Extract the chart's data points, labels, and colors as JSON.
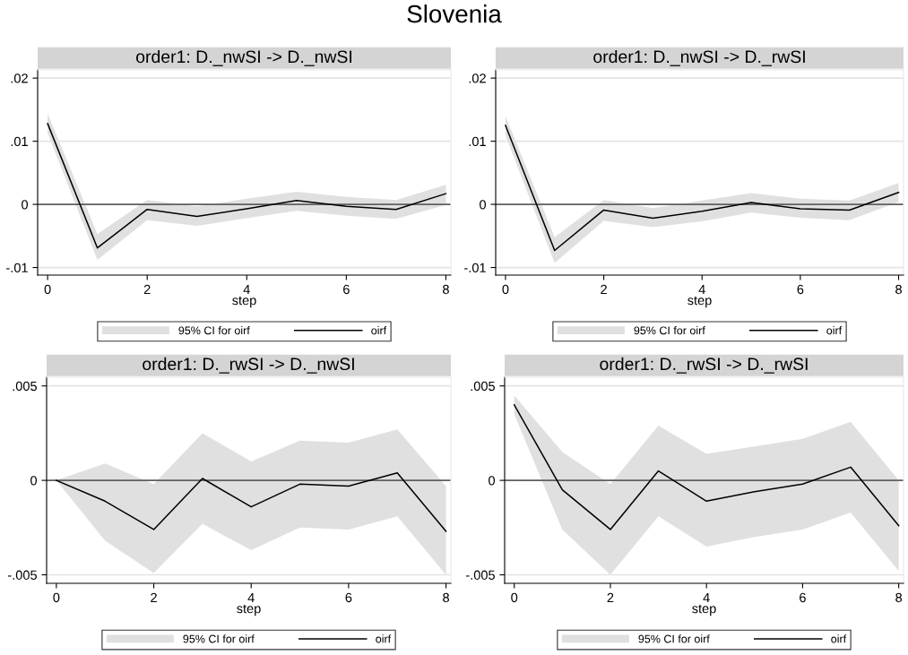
{
  "chart_data": [
    {
      "type": "line",
      "title": "order1: D._nwSI -> D._nwSI",
      "xlabel": "step",
      "annotations": [
        "Slovenia",
        "95% CI for oirf"
      ],
      "x": [
        0,
        1,
        2,
        3,
        4,
        5,
        6,
        7,
        8
      ],
      "series": [
        {
          "name": "oirf",
          "color": "#000000",
          "values": [
            0.0128,
            -0.0069,
            -0.0008,
            -0.0019,
            -0.0007,
            0.0006,
            -0.0003,
            -0.0008,
            0.0017
          ],
          "lower": [
            0.0113,
            -0.0088,
            -0.0025,
            -0.0034,
            -0.0022,
            -0.001,
            -0.0018,
            -0.0023,
            -0.0001
          ],
          "upper": [
            0.0144,
            -0.0047,
            0.0007,
            -0.0003,
            0.0009,
            0.002,
            0.0012,
            0.0007,
            0.0031
          ]
        }
      ],
      "xlim": [
        -0.2,
        8.1
      ],
      "xticks": [
        0,
        2,
        4,
        6,
        8
      ],
      "ylim": [
        -0.0112,
        0.0213
      ],
      "yticks": [
        {
          "value": -0.01,
          "label": "-.01"
        },
        0,
        {
          "value": 0.01,
          "label": ".01"
        },
        {
          "value": 0.02,
          "label": ".02"
        }
      ],
      "ref_lines": [
        {
          "axis": "y",
          "value": 0,
          "color": "#606060"
        }
      ],
      "grid": "y",
      "legend": "bottom",
      "marker": "none",
      "line_style": "solid"
    },
    {
      "type": "line",
      "title": "order1: D._nwSI -> D._rwSI",
      "xlabel": "step",
      "annotations": [
        "95% CI for oirf"
      ],
      "x": [
        0,
        1,
        2,
        3,
        4,
        5,
        6,
        7,
        8
      ],
      "series": [
        {
          "name": "oirf",
          "color": "#000000",
          "values": [
            0.0125,
            -0.0073,
            -0.0009,
            -0.0022,
            -0.0011,
            0.0003,
            -0.0007,
            -0.0009,
            0.0019
          ],
          "lower": [
            0.0109,
            -0.0093,
            -0.0026,
            -0.0036,
            -0.0027,
            -0.0013,
            -0.0021,
            -0.0025,
            0.0004
          ],
          "upper": [
            0.014,
            -0.0052,
            0.0007,
            -0.0006,
            0.0006,
            0.0018,
            0.0009,
            0.0006,
            0.0034
          ]
        }
      ],
      "xlim": [
        -0.2,
        8.1
      ],
      "xticks": [
        0,
        2,
        4,
        6,
        8
      ],
      "ylim": [
        -0.0112,
        0.0213
      ],
      "yticks": [
        {
          "value": -0.01,
          "label": "-.01"
        },
        0,
        {
          "value": 0.01,
          "label": ".01"
        },
        {
          "value": 0.02,
          "label": ".02"
        }
      ],
      "ref_lines": [
        {
          "axis": "y",
          "value": 0,
          "color": "#606060"
        }
      ],
      "grid": "y",
      "legend": "bottom",
      "marker": "none",
      "line_style": "solid"
    },
    {
      "type": "line",
      "title": "order1: D._rwSI -> D._nwSI",
      "xlabel": "step",
      "annotations": [
        "95% CI for oirf"
      ],
      "x": [
        0,
        1,
        2,
        3,
        4,
        5,
        6,
        7,
        8
      ],
      "series": [
        {
          "name": "oirf",
          "color": "#000000",
          "values": [
            0,
            -0.0011,
            -0.0026,
            0.0001,
            -0.0014,
            -0.0002,
            -0.0003,
            0.0004,
            -0.0027
          ],
          "lower": [
            0,
            -0.0032,
            -0.0049,
            -0.0023,
            -0.0037,
            -0.0025,
            -0.0026,
            -0.0019,
            -0.005
          ],
          "upper": [
            0,
            0.0009,
            -0.0002,
            0.0025,
            0.001,
            0.0021,
            0.002,
            0.0027,
            -0.0003
          ]
        }
      ],
      "xlim": [
        -0.2,
        8.1
      ],
      "xticks": [
        0,
        2,
        4,
        6,
        8
      ],
      "ylim": [
        -0.00545,
        0.00546
      ],
      "yticks": [
        {
          "value": -0.005,
          "label": "-.005"
        },
        0,
        {
          "value": 0.005,
          "label": ".005"
        }
      ],
      "ref_lines": [
        {
          "axis": "y",
          "value": 0,
          "color": "#606060"
        }
      ],
      "grid": "y",
      "legend": "bottom",
      "marker": "none",
      "line_style": "solid"
    },
    {
      "type": "line",
      "title": "order1: D._rwSI -> D._rwSI",
      "xlabel": "step",
      "annotations": [
        "95% CI for oirf"
      ],
      "x": [
        0,
        1,
        2,
        3,
        4,
        5,
        6,
        7,
        8
      ],
      "series": [
        {
          "name": "oirf",
          "color": "#000000",
          "values": [
            0.004,
            -0.0005,
            -0.0026,
            0.0005,
            -0.0011,
            -0.0006,
            -0.0002,
            0.0007,
            -0.0024
          ],
          "lower": [
            0.0035,
            -0.0026,
            -0.005,
            -0.0019,
            -0.0035,
            -0.003,
            -0.0026,
            -0.0017,
            -0.0048
          ],
          "upper": [
            0.0045,
            0.0015,
            -0.0002,
            0.0029,
            0.0014,
            0.0018,
            0.0022,
            0.0031,
            0.0
          ]
        }
      ],
      "xlim": [
        -0.2,
        8.1
      ],
      "xticks": [
        0,
        2,
        4,
        6,
        8
      ],
      "ylim": [
        -0.00545,
        0.00546
      ],
      "yticks": [
        {
          "value": -0.005,
          "label": "-.005"
        },
        0,
        {
          "value": 0.005,
          "label": ".005"
        }
      ],
      "ref_lines": [
        {
          "axis": "y",
          "value": 0,
          "color": "#606060"
        }
      ],
      "grid": "y",
      "legend": "bottom",
      "marker": "none",
      "line_style": "solid"
    }
  ]
}
